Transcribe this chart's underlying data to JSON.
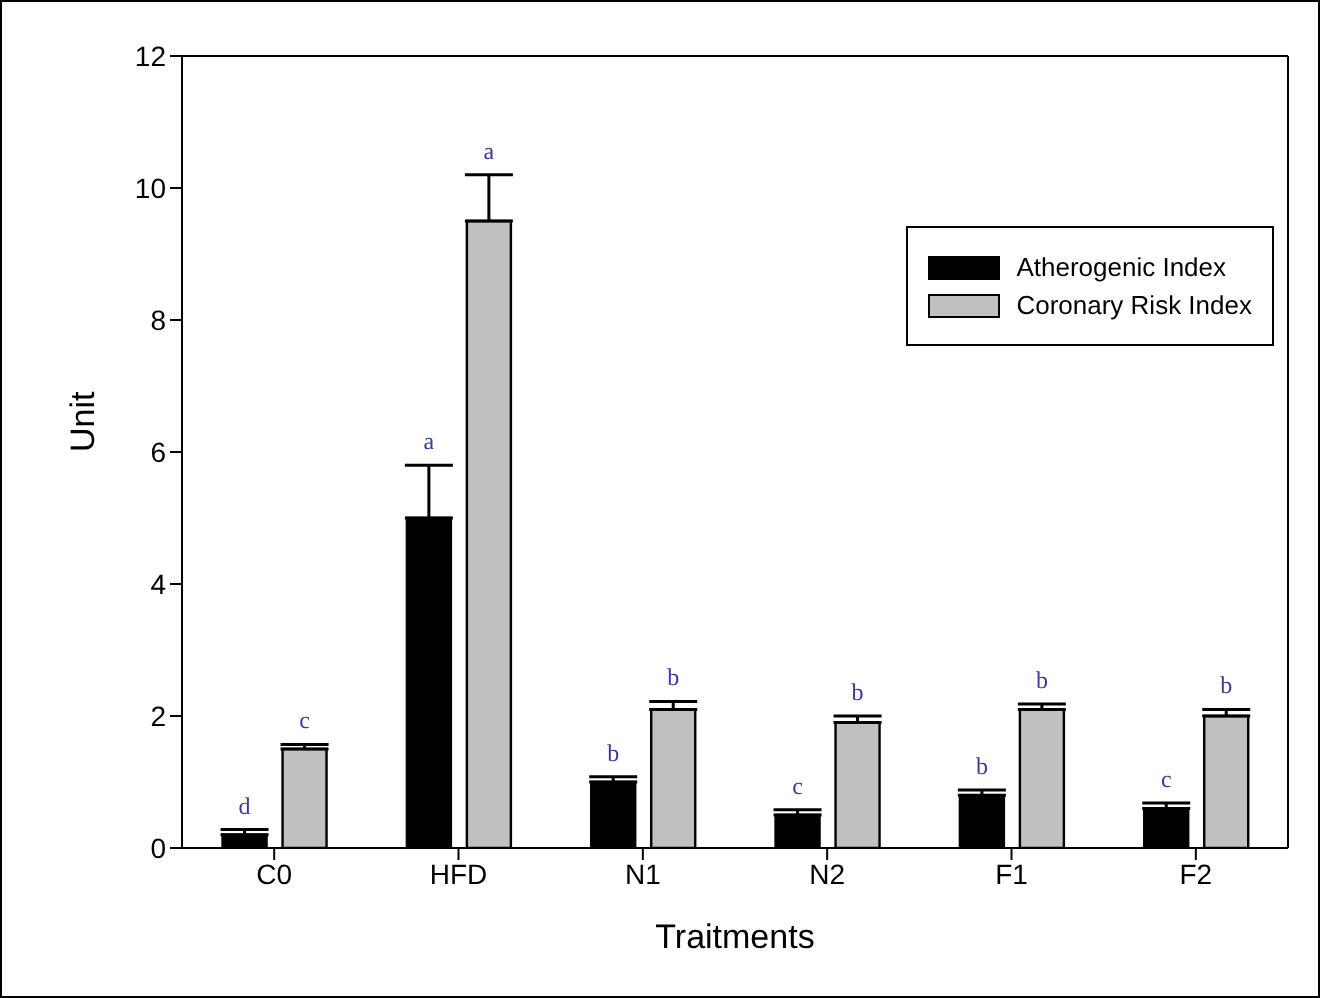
{
  "chart_data": {
    "type": "bar",
    "xlabel": "Traitments",
    "ylabel": "Unit",
    "categories": [
      "C0",
      "HFD",
      "N1",
      "N2",
      "F1",
      "F2"
    ],
    "series": [
      {
        "name": "Atherogenic Index",
        "color": "#000000",
        "values": [
          0.2,
          5.0,
          1.0,
          0.5,
          0.8,
          0.6
        ],
        "errors": [
          [
            0.2,
            0.28
          ],
          [
            5.0,
            5.8
          ],
          [
            1.0,
            1.08
          ],
          [
            0.5,
            0.58
          ],
          [
            0.8,
            0.88
          ],
          [
            0.6,
            0.68
          ]
        ],
        "value_labels": [
          "d",
          "a",
          "b",
          "c",
          "b",
          "c"
        ]
      },
      {
        "name": "Coronary Risk Index",
        "color": "#c0c0c0",
        "values": [
          1.5,
          9.5,
          2.1,
          1.9,
          2.1,
          2.0
        ],
        "errors": [
          [
            1.5,
            1.57
          ],
          [
            9.5,
            10.2
          ],
          [
            2.1,
            2.22
          ],
          [
            1.9,
            2.0
          ],
          [
            2.1,
            2.18
          ],
          [
            2.0,
            2.1
          ]
        ],
        "value_labels": [
          "c",
          "a",
          "b",
          "b",
          "b",
          "b"
        ]
      }
    ],
    "ylim": [
      0,
      12
    ],
    "yticks": [
      0,
      2,
      4,
      6,
      8,
      10,
      12
    ],
    "grid": false,
    "legend": "top right"
  }
}
